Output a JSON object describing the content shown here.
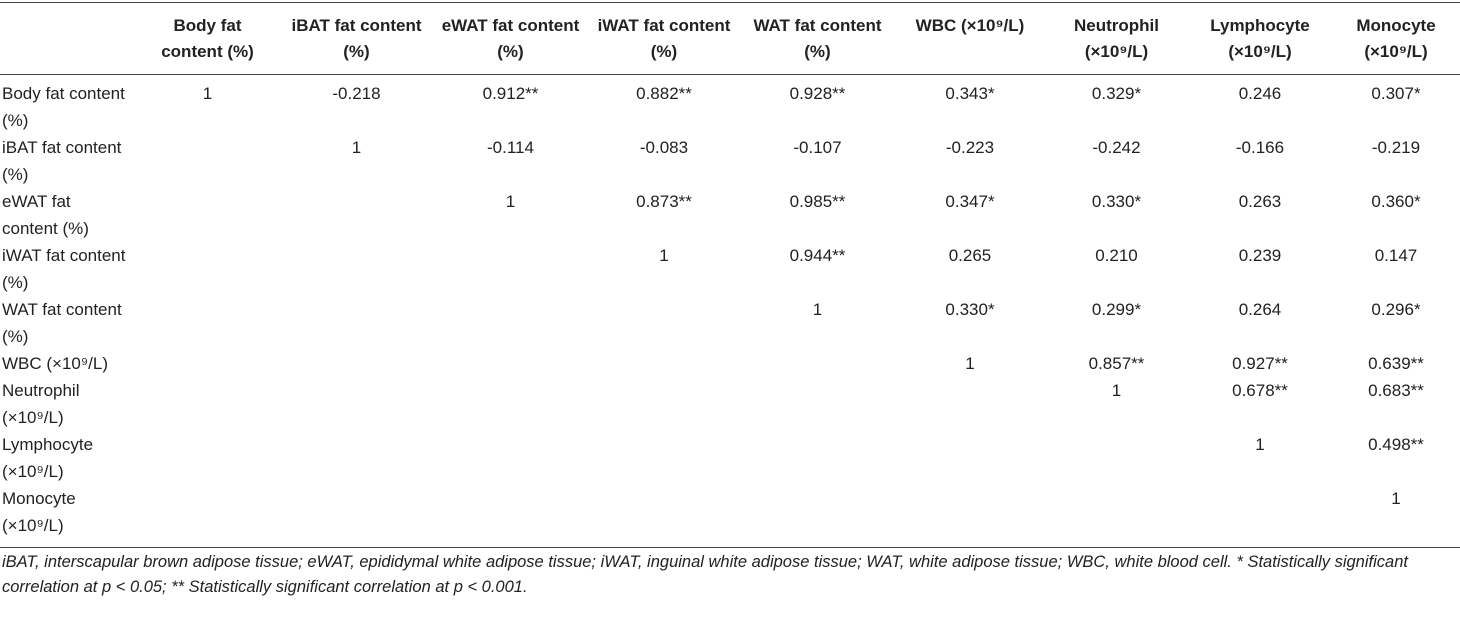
{
  "table": {
    "columns": [
      "Body fat content (%)",
      "iBAT fat content (%)",
      "eWAT fat content (%)",
      "iWAT fat content (%)",
      "WAT fat content (%)",
      "WBC (×10⁹/L)",
      "Neutrophil (×10⁹/L)",
      "Lymphocyte (×10⁹/L)",
      "Monocyte (×10⁹/L)"
    ],
    "rows": [
      {
        "label": "Body fat content (%)",
        "cells": [
          "1",
          "-0.218",
          "0.912**",
          "0.882**",
          "0.928**",
          "0.343*",
          "0.329*",
          "0.246",
          "0.307*"
        ]
      },
      {
        "label": "iBAT fat content (%)",
        "cells": [
          "1",
          "-0.114",
          "-0.083",
          "-0.107",
          "-0.223",
          "-0.242",
          "-0.166",
          "-0.219"
        ]
      },
      {
        "label": "eWAT fat content (%)",
        "cells": [
          "1",
          "0.873**",
          "0.985**",
          "0.347*",
          "0.330*",
          "0.263",
          "0.360*"
        ]
      },
      {
        "label": "iWAT fat content (%)",
        "cells": [
          "1",
          "0.944**",
          "0.265",
          "0.210",
          "0.239",
          "0.147"
        ]
      },
      {
        "label": "WAT fat content (%)",
        "cells": [
          "1",
          "0.330*",
          "0.299*",
          "0.264",
          "0.296*"
        ]
      },
      {
        "label": "WBC (×10⁹/L)",
        "cells": [
          "1",
          "0.857**",
          "0.927**",
          "0.639**"
        ]
      },
      {
        "label": "Neutrophil (×10⁹/L)",
        "cells": [
          "1",
          "0.678**",
          "0.683**"
        ]
      },
      {
        "label": "Lymphocyte (×10⁹/L)",
        "cells": [
          "1",
          "0.498**"
        ]
      },
      {
        "label": "Monocyte (×10⁹/L)",
        "cells": [
          "1"
        ]
      }
    ],
    "footnote": "iBAT, interscapular brown adipose tissue; eWAT, epididymal white adipose tissue; iWAT, inguinal white adipose tissue; WAT, white adipose tissue; WBC, white blood cell. * Statistically significant correlation at p < 0.05; ** Statistically significant correlation at p < 0.001."
  }
}
